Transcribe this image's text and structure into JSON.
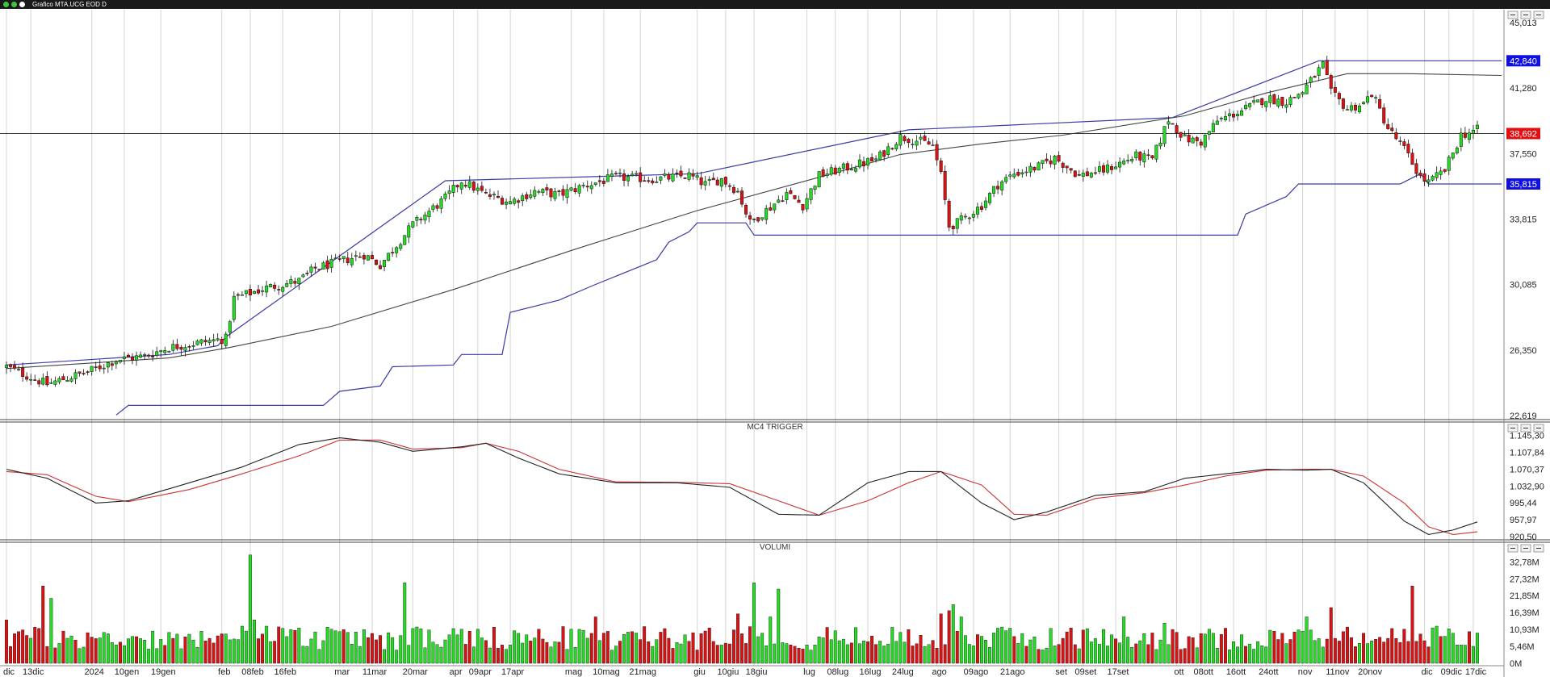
{
  "window": {
    "title": "Grafico MTA.UCG EOD D"
  },
  "panels": {
    "price": {
      "title": "",
      "y_ticks": [
        "45,013",
        "41,280",
        "37,550",
        "33,815",
        "30,085",
        "26,350",
        "22,619"
      ],
      "y_tick_values": [
        45.013,
        41.28,
        37.55,
        33.815,
        30.085,
        26.35,
        22.619
      ],
      "ylim": [
        22.619,
        45.013
      ],
      "tags": [
        {
          "label": "42,840",
          "value": 42.84,
          "color": "#1010e0"
        },
        {
          "label": "38,692",
          "value": 38.692,
          "color": "#e01010"
        },
        {
          "label": "35,815",
          "value": 35.815,
          "color": "#1010e0"
        }
      ]
    },
    "mc4": {
      "title": "MC4 TRIGGER",
      "y_ticks": [
        "1.145,30",
        "1.107,84",
        "1.070,37",
        "1.032,90",
        "995,44",
        "957,97",
        "920,50"
      ],
      "y_tick_values": [
        1145.3,
        1107.84,
        1070.37,
        1032.9,
        995.44,
        957.97,
        920.5
      ],
      "ylim": [
        915,
        1150
      ]
    },
    "volume": {
      "title": "VOLUMI",
      "y_ticks": [
        "32,78M",
        "27,32M",
        "21,85M",
        "16,39M",
        "10,93M",
        "5,46M",
        "0M"
      ],
      "y_tick_values": [
        32.78,
        27.32,
        21.85,
        16.39,
        10.93,
        5.46,
        0
      ],
      "ylim": [
        0,
        36
      ]
    }
  },
  "x_axis": {
    "labels": [
      {
        "i": 0,
        "text": "dic"
      },
      {
        "i": 6,
        "text": "13dic"
      },
      {
        "i": 21,
        "text": "2024"
      },
      {
        "i": 29,
        "text": "10gen"
      },
      {
        "i": 38,
        "text": "19gen"
      },
      {
        "i": 53,
        "text": "feb"
      },
      {
        "i": 60,
        "text": "08feb"
      },
      {
        "i": 68,
        "text": "16feb"
      },
      {
        "i": 82,
        "text": "mar"
      },
      {
        "i": 90,
        "text": "11mar"
      },
      {
        "i": 100,
        "text": "20mar"
      },
      {
        "i": 110,
        "text": "apr"
      },
      {
        "i": 116,
        "text": "09apr"
      },
      {
        "i": 124,
        "text": "17apr"
      },
      {
        "i": 139,
        "text": "mag"
      },
      {
        "i": 147,
        "text": "10mag"
      },
      {
        "i": 156,
        "text": "21mag"
      },
      {
        "i": 170,
        "text": "giu"
      },
      {
        "i": 177,
        "text": "10giu"
      },
      {
        "i": 184,
        "text": "18giu"
      },
      {
        "i": 197,
        "text": "lug"
      },
      {
        "i": 204,
        "text": "08lug"
      },
      {
        "i": 212,
        "text": "16lug"
      },
      {
        "i": 220,
        "text": "24lug"
      },
      {
        "i": 229,
        "text": "ago"
      },
      {
        "i": 238,
        "text": "09ago"
      },
      {
        "i": 247,
        "text": "21ago"
      },
      {
        "i": 259,
        "text": "set"
      },
      {
        "i": 265,
        "text": "09set"
      },
      {
        "i": 273,
        "text": "17set"
      },
      {
        "i": 288,
        "text": "ott"
      },
      {
        "i": 294,
        "text": "08ott"
      },
      {
        "i": 302,
        "text": "16ott"
      },
      {
        "i": 310,
        "text": "24ott"
      },
      {
        "i": 319,
        "text": "nov"
      },
      {
        "i": 327,
        "text": "11nov"
      },
      {
        "i": 335,
        "text": "20nov"
      },
      {
        "i": 349,
        "text": "dic"
      },
      {
        "i": 355,
        "text": "09dic"
      },
      {
        "i": 361,
        "text": "17dic"
      }
    ]
  },
  "chart_data": {
    "type": "candlestick",
    "instrument": "MTA.UCG",
    "bar_count": 363,
    "price_keypoints": [
      [
        0,
        25.4
      ],
      [
        10,
        24.4
      ],
      [
        14,
        24.7
      ],
      [
        20,
        25.1
      ],
      [
        27,
        25.8
      ],
      [
        34,
        26.0
      ],
      [
        40,
        26.5
      ],
      [
        48,
        26.8
      ],
      [
        54,
        27.0
      ],
      [
        56,
        29.3
      ],
      [
        64,
        29.9
      ],
      [
        72,
        30.3
      ],
      [
        76,
        31.0
      ],
      [
        88,
        31.8
      ],
      [
        92,
        31.2
      ],
      [
        100,
        33.5
      ],
      [
        108,
        35.0
      ],
      [
        112,
        36.0
      ],
      [
        118,
        35.2
      ],
      [
        124,
        34.8
      ],
      [
        130,
        35.4
      ],
      [
        136,
        35.2
      ],
      [
        142,
        35.7
      ],
      [
        150,
        36.2
      ],
      [
        160,
        36.1
      ],
      [
        168,
        36.3
      ],
      [
        172,
        35.8
      ],
      [
        176,
        36.1
      ],
      [
        180,
        35.4
      ],
      [
        183,
        33.6
      ],
      [
        188,
        34.5
      ],
      [
        192,
        35.3
      ],
      [
        196,
        34.6
      ],
      [
        200,
        36.3
      ],
      [
        206,
        36.7
      ],
      [
        214,
        37.2
      ],
      [
        220,
        38.5
      ],
      [
        224,
        38.3
      ],
      [
        228,
        38.0
      ],
      [
        230,
        36.3
      ],
      [
        232,
        33.4
      ],
      [
        234,
        33.6
      ],
      [
        240,
        34.6
      ],
      [
        244,
        35.8
      ],
      [
        248,
        36.4
      ],
      [
        254,
        36.8
      ],
      [
        258,
        37.3
      ],
      [
        264,
        36.3
      ],
      [
        270,
        36.6
      ],
      [
        278,
        37.4
      ],
      [
        282,
        37.2
      ],
      [
        286,
        39.5
      ],
      [
        290,
        38.4
      ],
      [
        294,
        38.2
      ],
      [
        298,
        39.4
      ],
      [
        305,
        40.1
      ],
      [
        310,
        40.7
      ],
      [
        315,
        40.5
      ],
      [
        319,
        41.1
      ],
      [
        324,
        42.6
      ],
      [
        326,
        41.0
      ],
      [
        330,
        40.1
      ],
      [
        334,
        40.4
      ],
      [
        336,
        41.0
      ],
      [
        340,
        39.0
      ],
      [
        344,
        37.8
      ],
      [
        348,
        36.2
      ],
      [
        350,
        35.9
      ],
      [
        354,
        36.6
      ],
      [
        358,
        38.6
      ],
      [
        362,
        38.9
      ],
      [
        366,
        38.7
      ],
      [
        368,
        38.7
      ]
    ],
    "last_price": 38.692,
    "channel_upper": [
      [
        0,
        25.5
      ],
      [
        40,
        26.1
      ],
      [
        52,
        26.6
      ],
      [
        54,
        27.1
      ],
      [
        108,
        36.0
      ],
      [
        170,
        36.4
      ],
      [
        222,
        38.9
      ],
      [
        287,
        39.6
      ],
      [
        323,
        42.84
      ],
      [
        368,
        42.84
      ]
    ],
    "channel_lower": [
      [
        27,
        22.65
      ],
      [
        30,
        23.2
      ],
      [
        78,
        23.2
      ],
      [
        82,
        24.0
      ],
      [
        92,
        24.3
      ],
      [
        95,
        25.4
      ],
      [
        110,
        25.5
      ],
      [
        112,
        26.1
      ],
      [
        122,
        26.1
      ],
      [
        124,
        28.5
      ],
      [
        136,
        29.2
      ],
      [
        144,
        30.0
      ],
      [
        160,
        31.5
      ],
      [
        163,
        32.5
      ],
      [
        168,
        33.1
      ],
      [
        170,
        33.6
      ],
      [
        182,
        33.6
      ],
      [
        184,
        32.9
      ],
      [
        303,
        32.9
      ],
      [
        305,
        34.1
      ],
      [
        315,
        35.1
      ],
      [
        318,
        35.815
      ],
      [
        343,
        35.815
      ],
      [
        348,
        36.4
      ],
      [
        350,
        35.815
      ],
      [
        368,
        35.815
      ]
    ],
    "moving_average": [
      [
        0,
        25.3
      ],
      [
        40,
        25.9
      ],
      [
        55,
        26.5
      ],
      [
        80,
        27.7
      ],
      [
        110,
        29.8
      ],
      [
        140,
        32.1
      ],
      [
        170,
        34.3
      ],
      [
        200,
        36.2
      ],
      [
        220,
        37.5
      ],
      [
        240,
        38.1
      ],
      [
        260,
        38.6
      ],
      [
        290,
        39.7
      ],
      [
        310,
        41.0
      ],
      [
        330,
        42.1
      ],
      [
        345,
        42.1
      ],
      [
        368,
        42.0
      ]
    ],
    "mc4_black": [
      [
        0,
        1070
      ],
      [
        10,
        1050
      ],
      [
        22,
        995
      ],
      [
        30,
        1000
      ],
      [
        45,
        1040
      ],
      [
        58,
        1075
      ],
      [
        72,
        1125
      ],
      [
        82,
        1140
      ],
      [
        92,
        1130
      ],
      [
        100,
        1110
      ],
      [
        112,
        1120
      ],
      [
        118,
        1128
      ],
      [
        126,
        1095
      ],
      [
        136,
        1060
      ],
      [
        150,
        1040
      ],
      [
        165,
        1040
      ],
      [
        178,
        1030
      ],
      [
        190,
        970
      ],
      [
        200,
        968
      ],
      [
        212,
        1040
      ],
      [
        222,
        1065
      ],
      [
        230,
        1065
      ],
      [
        240,
        995
      ],
      [
        248,
        958
      ],
      [
        256,
        975
      ],
      [
        268,
        1012
      ],
      [
        280,
        1020
      ],
      [
        290,
        1050
      ],
      [
        300,
        1060
      ],
      [
        310,
        1070
      ],
      [
        320,
        1068
      ],
      [
        326,
        1070
      ],
      [
        334,
        1040
      ],
      [
        344,
        955
      ],
      [
        350,
        925
      ],
      [
        356,
        935
      ],
      [
        366,
        965
      ]
    ],
    "mc4_red": [
      [
        0,
        1065
      ],
      [
        10,
        1058
      ],
      [
        22,
        1010
      ],
      [
        30,
        998
      ],
      [
        45,
        1025
      ],
      [
        58,
        1060
      ],
      [
        72,
        1100
      ],
      [
        82,
        1135
      ],
      [
        92,
        1135
      ],
      [
        100,
        1115
      ],
      [
        112,
        1118
      ],
      [
        118,
        1128
      ],
      [
        126,
        1110
      ],
      [
        136,
        1070
      ],
      [
        150,
        1042
      ],
      [
        165,
        1041
      ],
      [
        178,
        1038
      ],
      [
        190,
        1000
      ],
      [
        200,
        968
      ],
      [
        212,
        1000
      ],
      [
        222,
        1040
      ],
      [
        230,
        1065
      ],
      [
        240,
        1035
      ],
      [
        248,
        970
      ],
      [
        256,
        968
      ],
      [
        268,
        1005
      ],
      [
        280,
        1018
      ],
      [
        290,
        1035
      ],
      [
        300,
        1055
      ],
      [
        310,
        1068
      ],
      [
        320,
        1070
      ],
      [
        326,
        1070
      ],
      [
        334,
        1055
      ],
      [
        344,
        995
      ],
      [
        350,
        942
      ],
      [
        356,
        925
      ],
      [
        366,
        935
      ]
    ],
    "volume_spikes": [
      [
        0,
        14
      ],
      [
        5,
        9
      ],
      [
        9,
        25
      ],
      [
        11,
        21
      ],
      [
        40,
        10
      ],
      [
        58,
        12
      ],
      [
        60,
        35
      ],
      [
        61,
        14
      ],
      [
        64,
        12
      ],
      [
        92,
        9
      ],
      [
        98,
        26
      ],
      [
        116,
        11
      ],
      [
        145,
        15
      ],
      [
        180,
        16
      ],
      [
        184,
        26
      ],
      [
        188,
        15
      ],
      [
        190,
        24
      ],
      [
        230,
        16
      ],
      [
        232,
        17
      ],
      [
        233,
        19
      ],
      [
        235,
        15
      ],
      [
        275,
        15
      ],
      [
        285,
        13
      ],
      [
        296,
        11
      ],
      [
        320,
        15
      ],
      [
        326,
        18
      ],
      [
        346,
        25
      ],
      [
        352,
        12
      ]
    ],
    "volume_base": 8.5
  }
}
